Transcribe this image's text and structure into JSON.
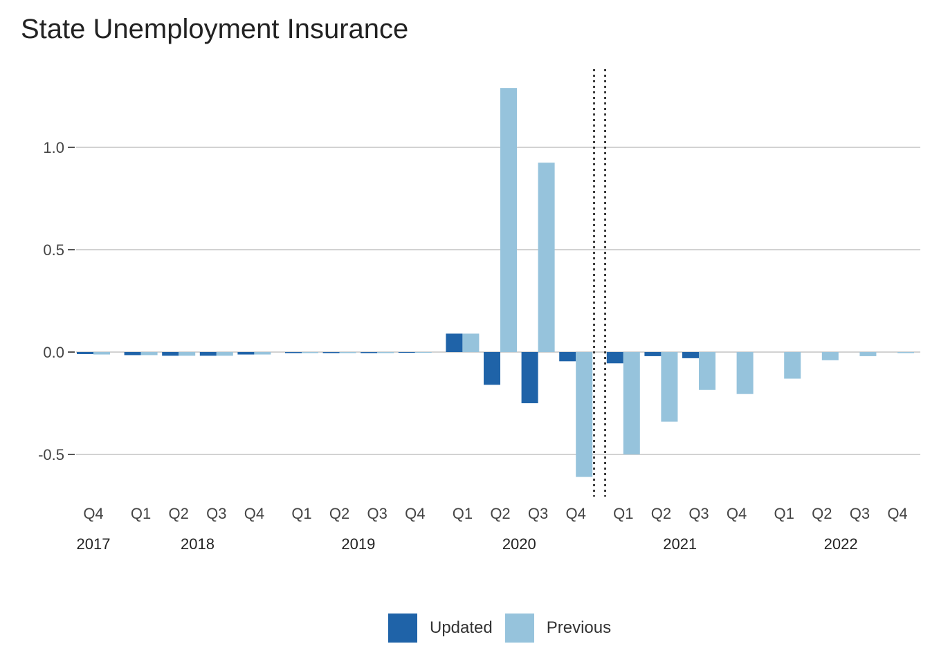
{
  "chart_data": {
    "type": "bar",
    "title": "State Unemployment Insurance",
    "xlabel": "",
    "ylabel": "",
    "ylim": [
      -0.68,
      1.4
    ],
    "yticks": [
      1.0,
      0.5,
      0.0,
      -0.5
    ],
    "ytick_labels": [
      "1.0",
      "0.5",
      "0.0",
      "-0.5"
    ],
    "grid": true,
    "legend_position": "bottom",
    "categories": [
      "2017 Q4",
      "2018 Q1",
      "2018 Q2",
      "2018 Q3",
      "2018 Q4",
      "2019 Q1",
      "2019 Q2",
      "2019 Q3",
      "2019 Q4",
      "2020 Q1",
      "2020 Q2",
      "2020 Q3",
      "2020 Q4",
      "2021 Q1",
      "2021 Q2",
      "2021 Q3",
      "2021 Q4",
      "2022 Q1",
      "2022 Q2",
      "2022 Q3",
      "2022 Q4"
    ],
    "tick_labels": [
      "Q4",
      "Q1",
      "Q2",
      "Q3",
      "Q4",
      "Q1",
      "Q2",
      "Q3",
      "Q4",
      "Q1",
      "Q2",
      "Q3",
      "Q4",
      "Q1",
      "Q2",
      "Q3",
      "Q4",
      "Q1",
      "Q2",
      "Q3",
      "Q4"
    ],
    "year_labels": [
      "2017",
      "2018",
      "2019",
      "2020",
      "2021",
      "2022"
    ],
    "year_spans": [
      [
        0,
        0
      ],
      [
        1,
        4
      ],
      [
        5,
        8
      ],
      [
        9,
        12
      ],
      [
        13,
        16
      ],
      [
        17,
        20
      ]
    ],
    "vertical_reference_after_category": "2020 Q4",
    "series": [
      {
        "name": "Updated",
        "color": "#1f63a8",
        "values": [
          -0.01,
          -0.015,
          -0.018,
          -0.018,
          -0.012,
          -0.005,
          -0.005,
          -0.005,
          -0.002,
          0.09,
          -0.16,
          -0.25,
          -0.045,
          -0.055,
          -0.02,
          -0.03,
          null,
          null,
          null,
          null,
          null
        ]
      },
      {
        "name": "Previous",
        "color": "#96c3dc",
        "values": [
          -0.012,
          -0.015,
          -0.018,
          -0.018,
          -0.012,
          -0.005,
          -0.005,
          -0.005,
          -0.002,
          0.09,
          1.29,
          0.925,
          -0.61,
          -0.5,
          -0.34,
          -0.185,
          -0.205,
          -0.13,
          -0.04,
          -0.02,
          -0.005
        ]
      }
    ]
  }
}
